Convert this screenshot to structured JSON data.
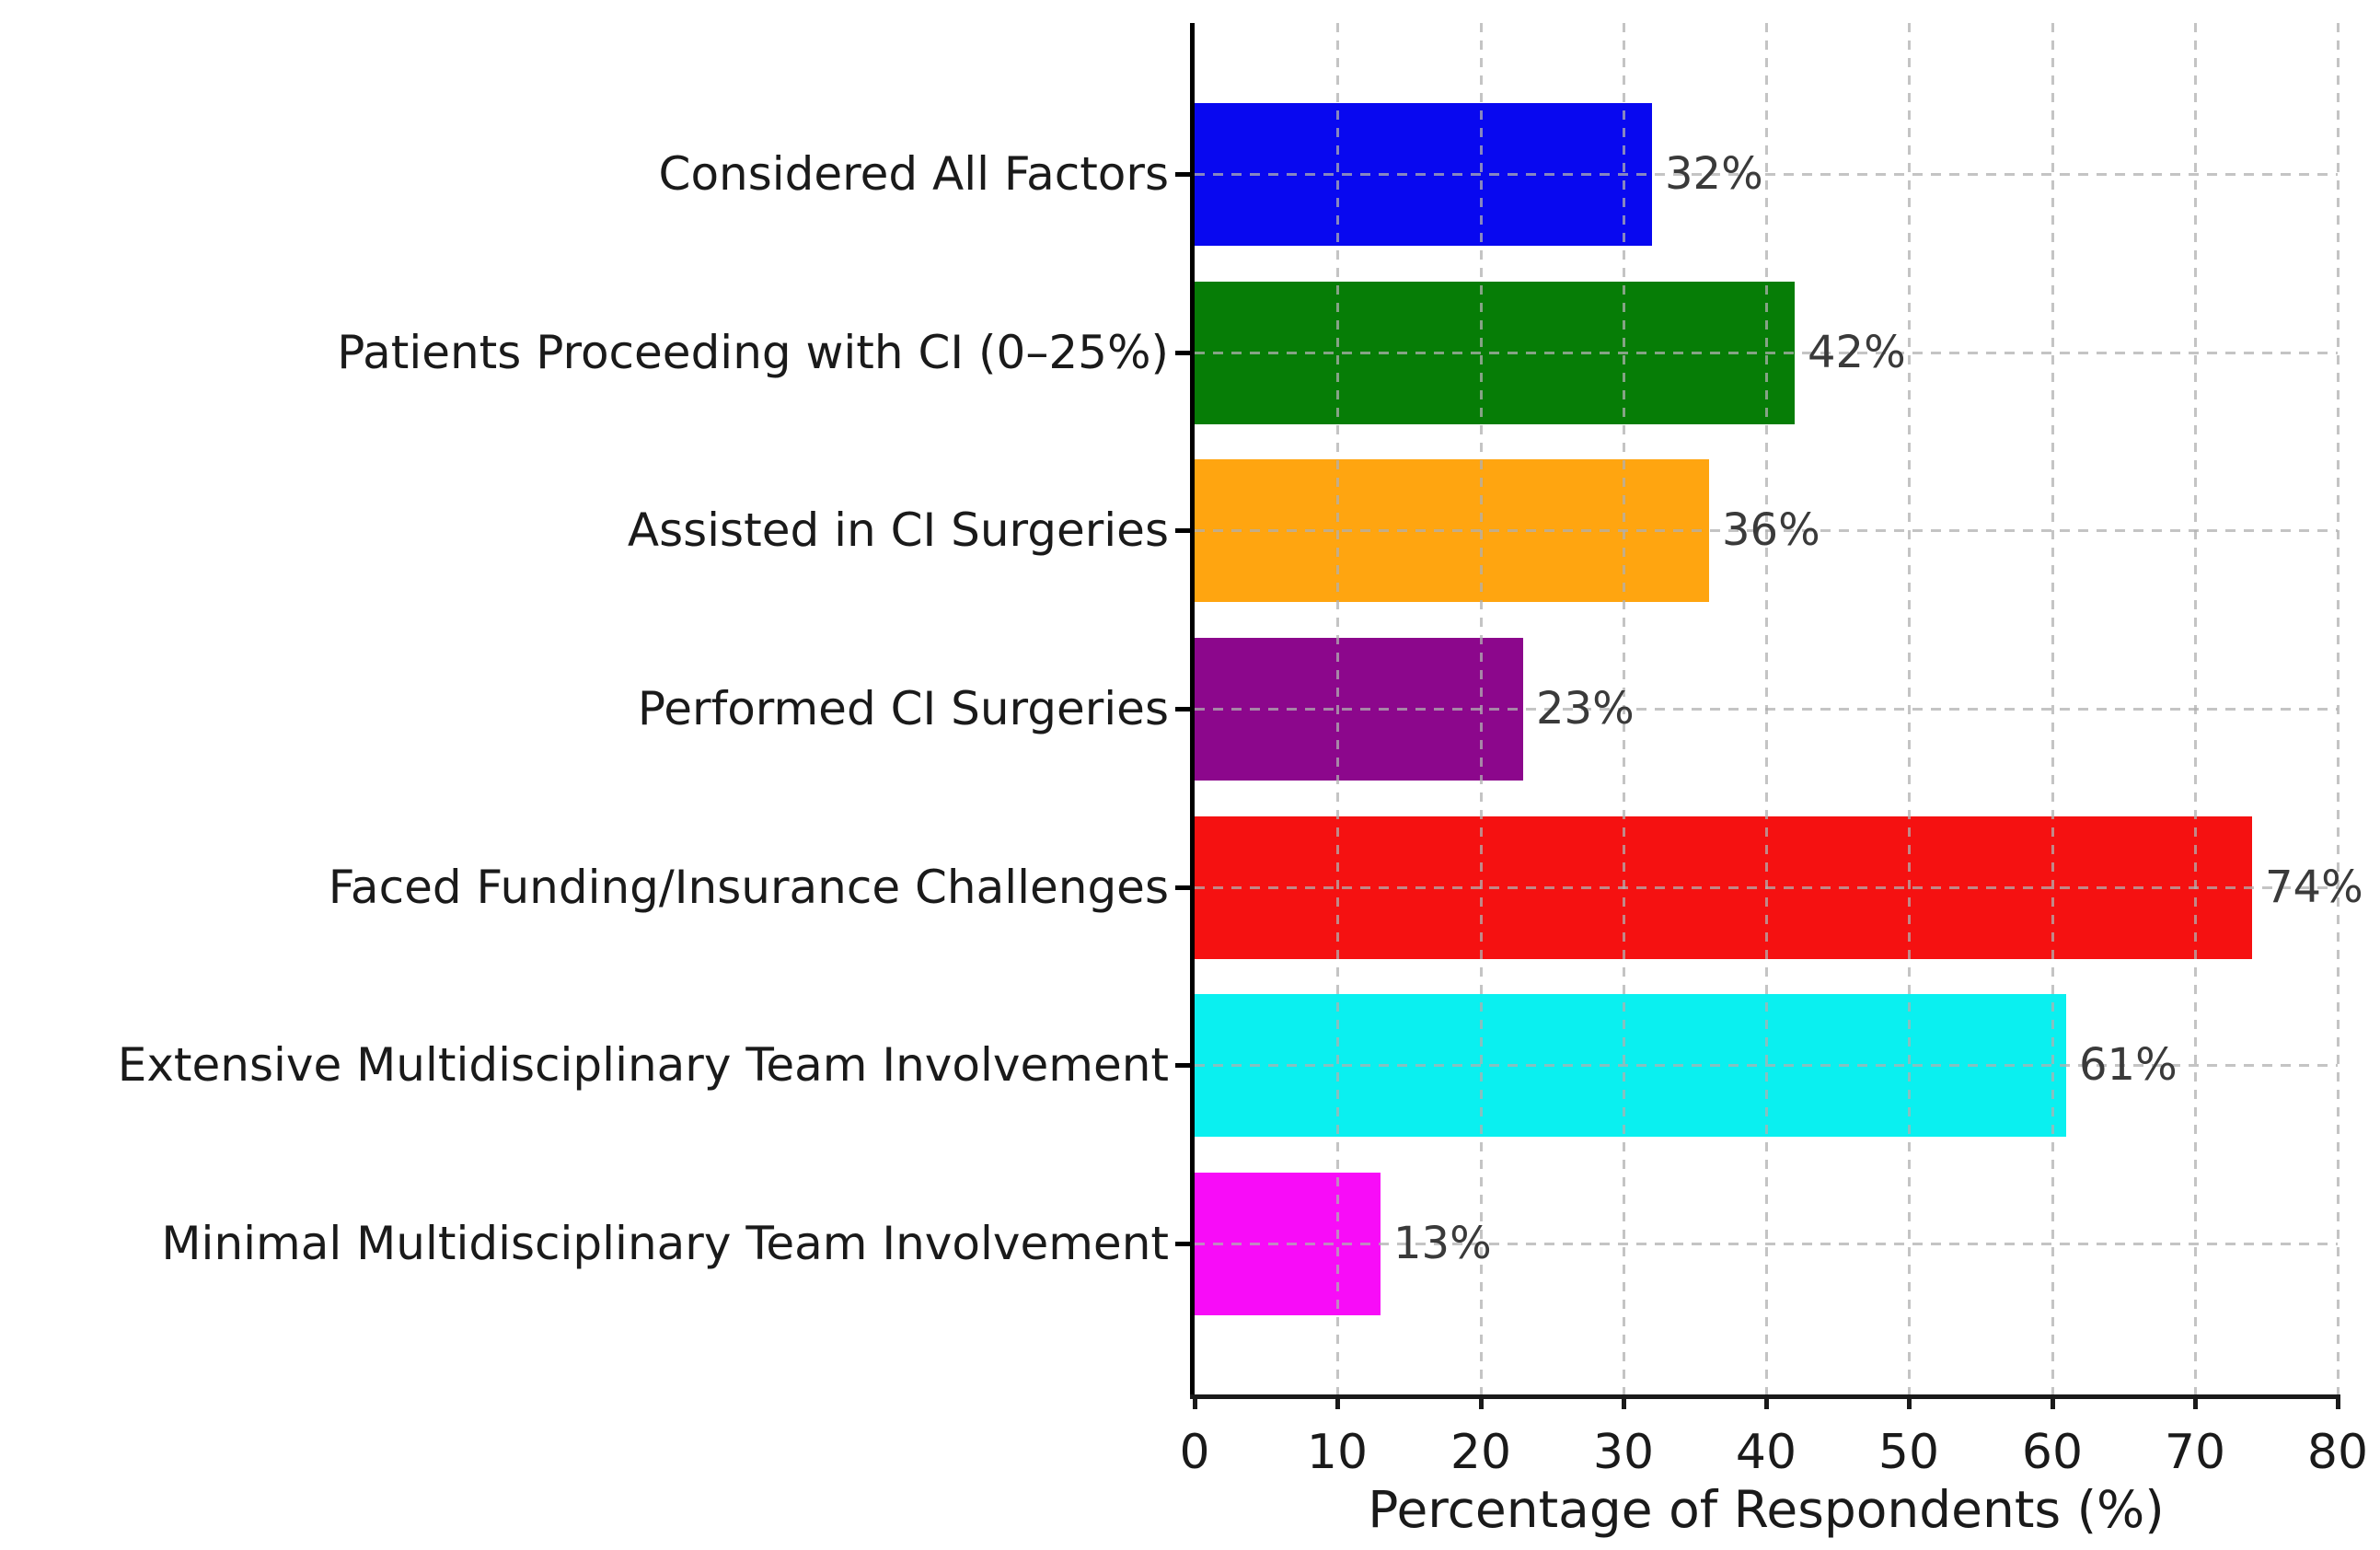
{
  "chart_data": {
    "type": "bar",
    "orientation": "horizontal",
    "title": "",
    "xlabel": "Percentage of Respondents (%)",
    "ylabel": "",
    "xlim": [
      0,
      80
    ],
    "xticks": [
      0,
      10,
      20,
      30,
      40,
      50,
      60,
      70,
      80
    ],
    "grid": "dashed, both axes, light gray, drawn over bars",
    "legend": "none",
    "categories": [
      "Considered All Factors",
      "Patients Proceeding with CI (0–25%)",
      "Assisted in CI Surgeries",
      "Performed CI Surgeries",
      "Faced Funding/Insurance Challenges",
      "Extensive Multidisciplinary Team Involvement",
      "Minimal Multidisciplinary Team Involvement"
    ],
    "values": [
      32,
      42,
      36,
      23,
      74,
      61,
      13
    ],
    "value_labels": [
      "32%",
      "42%",
      "36%",
      "23%",
      "74%",
      "61%",
      "13%"
    ],
    "bar_colors": [
      "#0808f0",
      "#067d06",
      "#ffa510",
      "#8c078c",
      "#f51111",
      "#0af0f0",
      "#f80cf8"
    ],
    "axis_color": "#000000",
    "grid_color": "#b0b0b0",
    "text_color": "#1a1a1a",
    "background_color": "#ffffff"
  }
}
